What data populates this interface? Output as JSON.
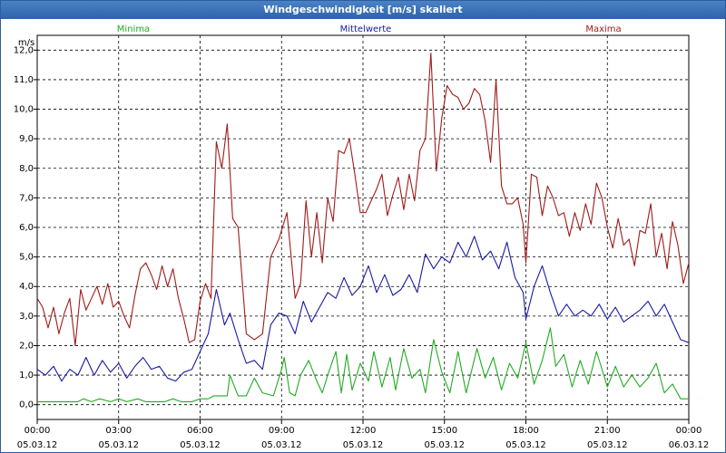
{
  "window_title": "Windgeschwindigkeit [m/s] skaliert",
  "colors": {
    "min": "#22aa22",
    "mean": "#1a1aa0",
    "max": "#a01a1a",
    "grid": "#000000"
  },
  "chart_data": {
    "type": "line",
    "title": "Windgeschwindigkeit [m/s] skaliert",
    "ylabel": "m/s",
    "xlabel": "",
    "ylim": [
      -0.5,
      12.5
    ],
    "xlim_hours": [
      0,
      24
    ],
    "grid": true,
    "legend_placement": "top",
    "y_ticks": [
      "0,0",
      "1,0",
      "2,0",
      "3,0",
      "4,0",
      "5,0",
      "6,0",
      "7,0",
      "8,0",
      "9,0",
      "10,0",
      "11,0",
      "12,0"
    ],
    "x_ticks": [
      {
        "time": "00:00",
        "date": "05.03.12"
      },
      {
        "time": "03:00",
        "date": "05.03.12"
      },
      {
        "time": "06:00",
        "date": "05.03.12"
      },
      {
        "time": "09:00",
        "date": "05.03.12"
      },
      {
        "time": "12:00",
        "date": "05.03.12"
      },
      {
        "time": "15:00",
        "date": "05.03.12"
      },
      {
        "time": "18:00",
        "date": "05.03.12"
      },
      {
        "time": "21:00",
        "date": "05.03.12"
      },
      {
        "time": "00:00",
        "date": "06.03.12"
      }
    ],
    "series": [
      {
        "name": "Minima",
        "color": "#22aa22",
        "x_hours": [
          0,
          0.5,
          1,
          1.5,
          1.7,
          2,
          2.3,
          2.7,
          3,
          3.3,
          3.7,
          4,
          4.3,
          4.7,
          5,
          5.3,
          5.7,
          6,
          6.3,
          6.5,
          6.8,
          7,
          7.1,
          7.4,
          7.7,
          8,
          8.3,
          8.7,
          9,
          9.1,
          9.3,
          9.5,
          9.7,
          10,
          10.3,
          10.5,
          10.7,
          11,
          11.2,
          11.4,
          11.6,
          11.9,
          12.2,
          12.4,
          12.7,
          13,
          13.2,
          13.5,
          13.8,
          14.1,
          14.3,
          14.6,
          14.9,
          15.2,
          15.5,
          15.8,
          16.2,
          16.5,
          16.8,
          17.1,
          17.4,
          17.7,
          18,
          18.3,
          18.6,
          18.9,
          19.1,
          19.4,
          19.7,
          20,
          20.3,
          20.6,
          21,
          21.3,
          21.6,
          21.9,
          22.2,
          22.5,
          22.8,
          23.1,
          23.4,
          23.7,
          24
        ],
        "values": [
          0.1,
          0.1,
          0.1,
          0.1,
          0.2,
          0.1,
          0.2,
          0.1,
          0.2,
          0.1,
          0.2,
          0.1,
          0.1,
          0.1,
          0.2,
          0.1,
          0.1,
          0.2,
          0.2,
          0.3,
          0.3,
          0.3,
          1.0,
          0.3,
          0.3,
          0.9,
          0.4,
          0.3,
          1.2,
          1.6,
          0.4,
          0.3,
          1.0,
          1.5,
          0.8,
          0.4,
          1.0,
          1.8,
          0.4,
          1.7,
          0.5,
          1.4,
          0.8,
          1.8,
          0.6,
          1.6,
          0.5,
          1.9,
          0.9,
          1.2,
          0.4,
          2.2,
          1.1,
          0.4,
          1.8,
          0.4,
          1.9,
          0.9,
          1.6,
          0.5,
          1.4,
          0.9,
          2.1,
          0.7,
          1.5,
          2.6,
          1.3,
          1.7,
          0.6,
          1.5,
          0.7,
          1.8,
          0.6,
          1.3,
          0.6,
          1.0,
          0.6,
          0.9,
          1.4,
          0.4,
          0.7,
          0.2,
          0.2
        ]
      },
      {
        "name": "Mittelwerte",
        "color": "#1a1aa0",
        "x_hours": [
          0,
          0.3,
          0.6,
          0.9,
          1.2,
          1.5,
          1.8,
          2.1,
          2.4,
          2.7,
          3,
          3.3,
          3.6,
          3.9,
          4.2,
          4.5,
          4.8,
          5.1,
          5.4,
          5.7,
          6,
          6.3,
          6.6,
          6.9,
          7.1,
          7.4,
          7.7,
          8,
          8.3,
          8.6,
          8.9,
          9.2,
          9.5,
          9.8,
          10.1,
          10.4,
          10.7,
          11,
          11.3,
          11.6,
          11.9,
          12.2,
          12.5,
          12.8,
          13.1,
          13.4,
          13.7,
          14,
          14.3,
          14.6,
          14.9,
          15.2,
          15.5,
          15.8,
          16.1,
          16.4,
          16.7,
          17,
          17.3,
          17.6,
          17.9,
          18,
          18.3,
          18.6,
          18.9,
          19.2,
          19.5,
          19.8,
          20.1,
          20.4,
          20.7,
          21,
          21.3,
          21.6,
          21.9,
          22.2,
          22.5,
          22.8,
          23.1,
          23.4,
          23.7,
          24
        ],
        "values": [
          1.2,
          1.0,
          1.3,
          0.8,
          1.2,
          1.0,
          1.6,
          1.0,
          1.5,
          1.1,
          1.4,
          0.9,
          1.3,
          1.6,
          1.2,
          1.3,
          0.9,
          0.8,
          1.1,
          1.2,
          1.8,
          2.4,
          3.9,
          2.7,
          3.1,
          2.2,
          1.4,
          1.5,
          1.2,
          2.7,
          3.1,
          3.0,
          2.4,
          3.5,
          2.8,
          3.3,
          3.8,
          3.6,
          4.3,
          3.7,
          4.0,
          4.7,
          3.8,
          4.4,
          3.7,
          3.9,
          4.4,
          3.8,
          5.1,
          4.6,
          5.0,
          4.8,
          5.5,
          5.0,
          5.7,
          4.9,
          5.2,
          4.6,
          5.5,
          4.3,
          3.8,
          2.9,
          4.0,
          4.7,
          3.8,
          3.0,
          3.4,
          3.0,
          3.2,
          3.0,
          3.4,
          2.9,
          3.3,
          2.8,
          3.0,
          3.2,
          3.5,
          3.0,
          3.4,
          2.8,
          2.2,
          2.1
        ]
      },
      {
        "name": "Maxima",
        "color": "#a01a1a",
        "x_hours": [
          0,
          0.2,
          0.4,
          0.6,
          0.8,
          1,
          1.2,
          1.4,
          1.6,
          1.8,
          2,
          2.2,
          2.4,
          2.6,
          2.8,
          3,
          3.2,
          3.4,
          3.6,
          3.8,
          4,
          4.2,
          4.4,
          4.6,
          4.8,
          5,
          5.2,
          5.4,
          5.6,
          5.8,
          6,
          6.2,
          6.4,
          6.6,
          6.8,
          7,
          7.2,
          7.4,
          7.7,
          8,
          8.3,
          8.6,
          8.9,
          9.2,
          9.5,
          9.7,
          9.9,
          10.1,
          10.3,
          10.5,
          10.7,
          10.9,
          11.1,
          11.3,
          11.5,
          11.7,
          11.9,
          12.1,
          12.3,
          12.5,
          12.7,
          12.9,
          13.1,
          13.3,
          13.5,
          13.7,
          13.9,
          14.1,
          14.3,
          14.5,
          14.7,
          14.9,
          15.1,
          15.3,
          15.5,
          15.7,
          15.9,
          16.1,
          16.3,
          16.5,
          16.7,
          16.9,
          17.1,
          17.3,
          17.5,
          17.7,
          17.9,
          18,
          18.2,
          18.4,
          18.6,
          18.8,
          19,
          19.2,
          19.4,
          19.6,
          19.8,
          20,
          20.2,
          20.4,
          20.6,
          20.8,
          21,
          21.2,
          21.4,
          21.6,
          21.8,
          22,
          22.2,
          22.4,
          22.6,
          22.8,
          23,
          23.2,
          23.4,
          23.6,
          23.8,
          24
        ],
        "values": [
          3.6,
          3.3,
          2.6,
          3.3,
          2.4,
          3.1,
          3.6,
          2.0,
          3.9,
          3.2,
          3.6,
          4.0,
          3.4,
          4.1,
          3.3,
          3.5,
          3.0,
          2.6,
          3.7,
          4.6,
          4.8,
          4.4,
          3.9,
          4.7,
          4.0,
          4.6,
          3.6,
          2.9,
          2.1,
          2.2,
          3.5,
          4.1,
          3.6,
          8.9,
          8.0,
          9.5,
          6.3,
          6.0,
          2.4,
          2.2,
          2.4,
          5.0,
          5.6,
          6.5,
          3.6,
          4.1,
          6.9,
          5.0,
          6.5,
          4.8,
          7.0,
          6.2,
          8.6,
          8.5,
          9.0,
          7.8,
          6.5,
          6.5,
          6.9,
          7.3,
          7.8,
          6.4,
          7.1,
          7.7,
          6.6,
          7.8,
          6.9,
          8.6,
          9.0,
          11.9,
          7.9,
          9.7,
          10.8,
          10.5,
          10.4,
          10.0,
          10.2,
          10.7,
          10.5,
          9.6,
          8.2,
          11.0,
          7.4,
          6.8,
          6.8,
          7.0,
          6.1,
          4.8,
          7.8,
          7.7,
          6.4,
          7.4,
          7.0,
          6.4,
          6.5,
          5.7,
          6.5,
          5.9,
          6.8,
          6.1,
          7.5,
          7.0,
          6.0,
          5.3,
          6.3,
          5.4,
          5.6,
          4.7,
          5.9,
          5.8,
          6.8,
          5.0,
          5.8,
          4.6,
          6.2,
          5.4,
          4.1,
          4.8
        ]
      }
    ]
  }
}
